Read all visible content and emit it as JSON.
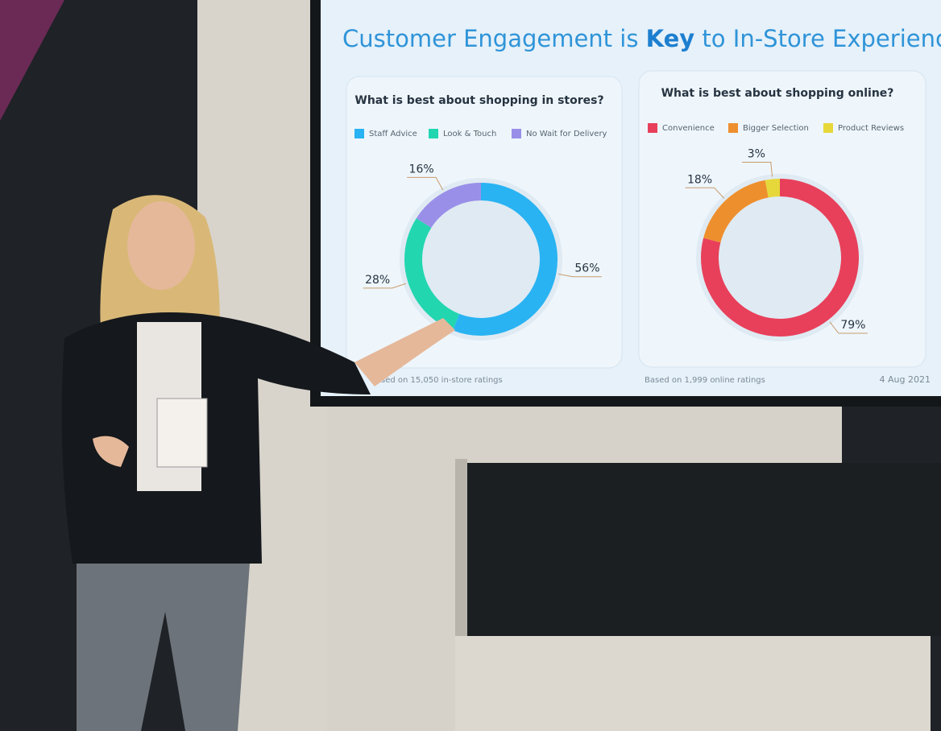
{
  "slide": {
    "title": [
      "Customer Engagement is ",
      "Key",
      " to In-Store Experience"
    ],
    "date": "4 Aug 2021"
  },
  "chart_data": [
    {
      "type": "pie",
      "title": "What is best about shopping in stores?",
      "categories": [
        "Staff Advice",
        "Look & Touch",
        "No Wait for Delivery"
      ],
      "values": [
        56,
        28,
        16
      ],
      "value_labels": [
        "56%",
        "28%",
        "16%"
      ],
      "colors": [
        "#29b3f2",
        "#22d6b0",
        "#9a8fe8"
      ],
      "note": "Based on 15,050 in-store ratings"
    },
    {
      "type": "pie",
      "title": "What is best about shopping online?",
      "categories": [
        "Convenience",
        "Bigger Selection",
        "Product Reviews"
      ],
      "values": [
        79,
        18,
        3
      ],
      "value_labels": [
        "79%",
        "18%",
        "3%"
      ],
      "colors": [
        "#e8405a",
        "#ee8f2e",
        "#e6d83a"
      ],
      "note": "Based on 1,999 online ratings"
    }
  ]
}
